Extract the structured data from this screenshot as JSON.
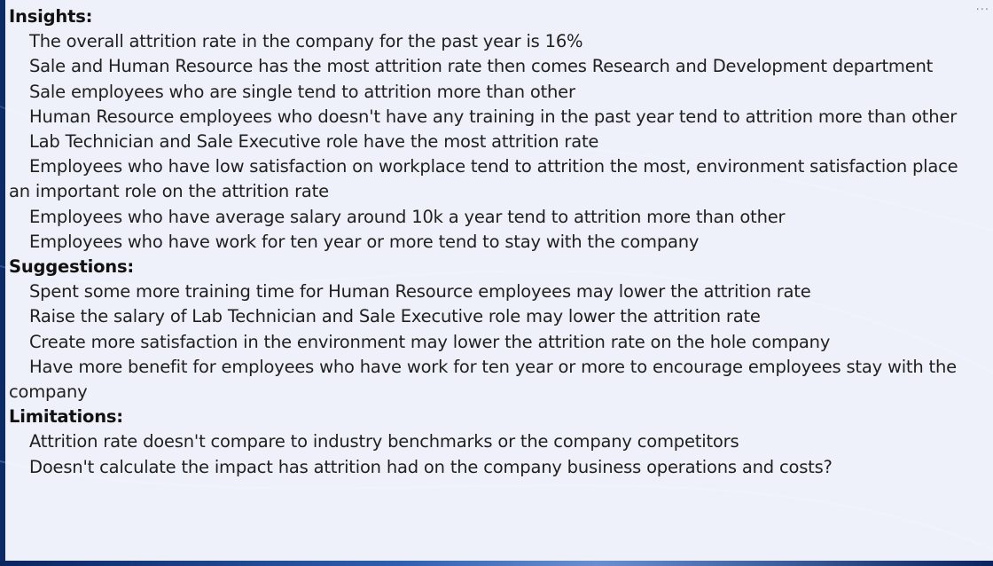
{
  "sections": [
    {
      "heading": "Insights:",
      "items": [
        "The overall attrition rate in the company for the past year is 16%",
        "Sale and Human Resource has the most attrition rate then comes Research and Development department",
        "Sale employees who are single tend to attrition more than other",
        "Human Resource employees who doesn't have any training in the past year tend to attrition more than other",
        "Lab Technician and Sale Executive role have the most attrition rate",
        "Employees who have low satisfaction on workplace tend to attrition the most, environment satisfaction place an important role on the attrition rate",
        "Employees who have average salary around 10k a year tend to attrition more than other",
        "Employees who have work for ten year or more tend to stay with the company"
      ]
    },
    {
      "heading": "Suggestions:",
      "items": [
        "Spent some more training time for Human Resource employees may lower the attrition rate",
        "Raise the salary of Lab Technician and Sale Executive role may lower the attrition rate",
        "Create more satisfaction in the environment may lower the attrition rate on the hole company",
        "Have more benefit for employees who have work for ten year or more to encourage employees stay with the company"
      ]
    },
    {
      "heading": "Limitations:",
      "items": [
        "Attrition rate doesn't compare to industry benchmarks or the company competitors",
        "Doesn't calculate the impact has attrition had on the company business operations and costs?"
      ]
    }
  ],
  "more_options": "···",
  "colors": {
    "background": "#0c2a66",
    "textbox": "#f8faff",
    "text": "#1f1f1f"
  }
}
